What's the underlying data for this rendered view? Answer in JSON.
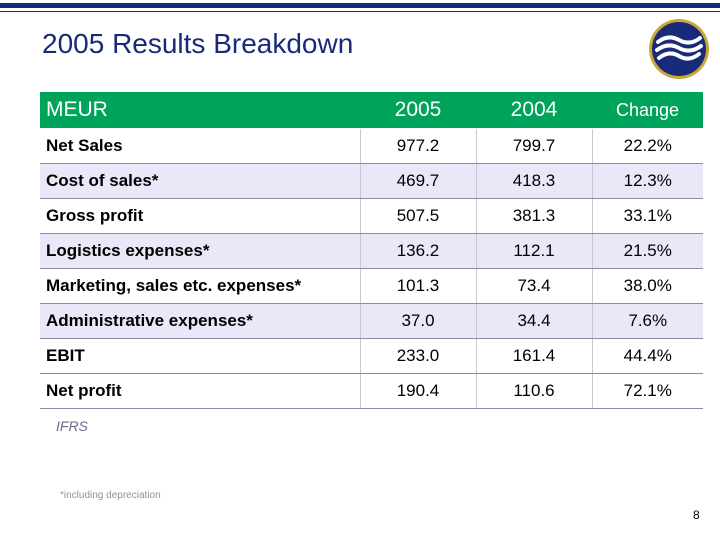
{
  "slide": {
    "title": "2005 Results Breakdown",
    "page_number": "8"
  },
  "colors": {
    "brand_navy": "#1a2a7a",
    "header_green": "#00a35a",
    "row_shade": "#e8e8f8",
    "logo_gold": "#c8a838"
  },
  "logo": {
    "icon": "wave-logo-icon"
  },
  "table": {
    "headers": {
      "label": "MEUR",
      "y2005": "2005",
      "y2004": "2004",
      "change": "Change"
    },
    "rows": [
      {
        "label": "Net Sales",
        "y2005": "977.2",
        "y2004": "799.7",
        "change": "22.2%"
      },
      {
        "label": "Cost of sales*",
        "y2005": "469.7",
        "y2004": "418.3",
        "change": "12.3%"
      },
      {
        "label": "Gross profit",
        "y2005": "507.5",
        "y2004": "381.3",
        "change": "33.1%"
      },
      {
        "label": "Logistics expenses*",
        "y2005": "136.2",
        "y2004": "112.1",
        "change": "21.5%"
      },
      {
        "label": "Marketing, sales etc. expenses*",
        "y2005": "101.3",
        "y2004": "73.4",
        "change": "38.0%"
      },
      {
        "label": "Administrative expenses*",
        "y2005": "37.0",
        "y2004": "34.4",
        "change": "7.6%"
      },
      {
        "label": "EBIT",
        "y2005": "233.0",
        "y2004": "161.4",
        "change": "44.4%"
      },
      {
        "label": "Net profit",
        "y2005": "190.4",
        "y2004": "110.6",
        "change": "72.1%"
      }
    ]
  },
  "notes": {
    "ifrs": "IFRS",
    "footnote": "*including depreciation"
  }
}
